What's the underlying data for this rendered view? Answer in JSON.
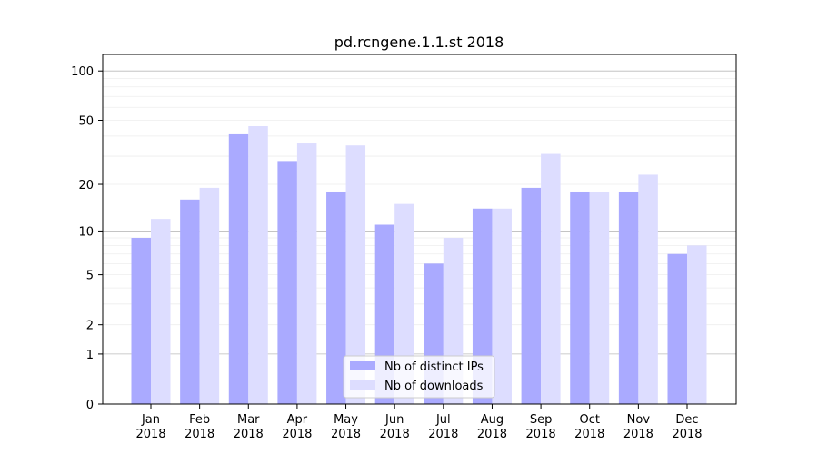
{
  "chart_data": {
    "type": "bar",
    "title": "pd.rcngene.1.1.st 2018",
    "xlabel": "",
    "ylabel": "",
    "yscale": "log10(1+y)",
    "ylim": [
      0,
      120
    ],
    "yticks": [
      0,
      1,
      2,
      5,
      10,
      20,
      50,
      100
    ],
    "categories": [
      "Jan\n2018",
      "Feb\n2018",
      "Mar\n2018",
      "Apr\n2018",
      "May\n2018",
      "Jun\n2018",
      "Jul\n2018",
      "Aug\n2018",
      "Sep\n2018",
      "Oct\n2018",
      "Nov\n2018",
      "Dec\n2018"
    ],
    "series": [
      {
        "name": "Nb of distinct IPs",
        "color": "#aaaaff",
        "values": [
          9,
          16,
          41,
          28,
          18,
          11,
          6,
          14,
          19,
          18,
          18,
          7
        ]
      },
      {
        "name": "Nb of downloads",
        "color": "#ddddff",
        "values": [
          12,
          19,
          46,
          36,
          35,
          15,
          9,
          14,
          31,
          18,
          23,
          8
        ]
      }
    ],
    "legend_position": "lower-center",
    "grid": true
  }
}
